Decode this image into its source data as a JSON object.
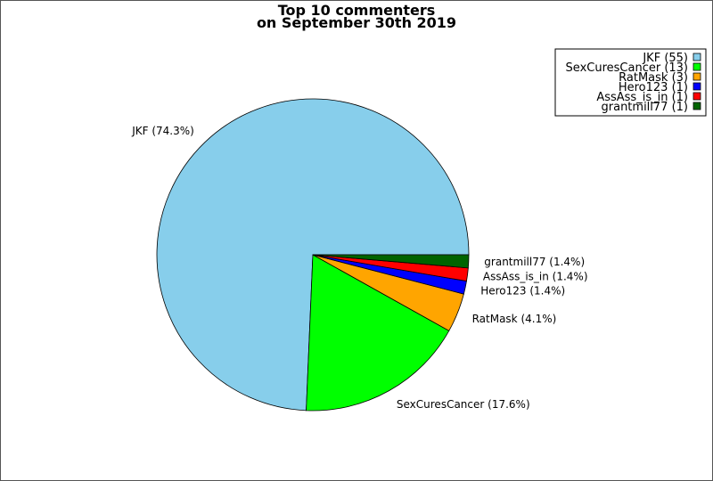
{
  "chart_data": {
    "type": "pie",
    "title": [
      "Top 10 commenters",
      "on September 30th 2019"
    ],
    "slices": [
      {
        "name": "JKF",
        "value": 55,
        "percent_label": "(74.3%)",
        "color": "#87ceeb"
      },
      {
        "name": "SexCuresCancer",
        "value": 13,
        "percent_label": "(17.6%)",
        "color": "#00ff00"
      },
      {
        "name": "RatMask",
        "value": 3,
        "percent_label": "(4.1%)",
        "color": "#ffa500"
      },
      {
        "name": "Hero123",
        "value": 1,
        "percent_label": "(1.4%)",
        "color": "#0000ff"
      },
      {
        "name": "AssAss_is_in",
        "value": 1,
        "percent_label": "(1.4%)",
        "color": "#ff0000"
      },
      {
        "name": "grantmill77",
        "value": 1,
        "percent_label": "(1.4%)",
        "color": "#006400"
      }
    ],
    "legend": {
      "placement": "top-right",
      "entries": [
        "JKF (55)",
        "SexCuresCancer (13)",
        "RatMask (3)",
        "Hero123 (1)",
        "AssAss_is_in (1)",
        "grantmill77 (1)"
      ]
    }
  }
}
